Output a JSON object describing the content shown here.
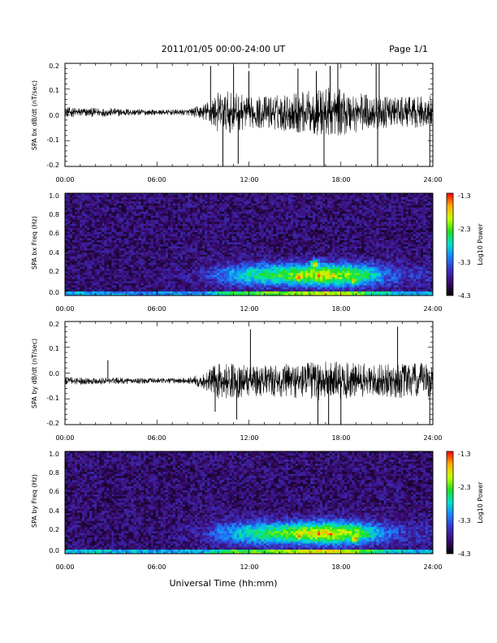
{
  "header": {
    "title": "2011/01/05  00:00-24:00 UT",
    "page": "Page 1/1"
  },
  "x_axis": {
    "title": "Universal Time (hh:mm)",
    "tick_labels": [
      "00:00",
      "06:00",
      "12:00",
      "18:00",
      "24:00"
    ],
    "range_hours": [
      0,
      24
    ]
  },
  "colorbar": {
    "label": "Log10 Power",
    "tick_labels": [
      "-1.3",
      "-2.3",
      "-3.3",
      "-4.3"
    ],
    "range": [
      -4.3,
      -1.3
    ],
    "colors": [
      "#000000",
      "#3a0a6e",
      "#3b2fc0",
      "#1a7fff",
      "#00e0d0",
      "#20e020",
      "#c8ff00",
      "#ffb000",
      "#ff0000"
    ]
  },
  "chart_data": [
    {
      "type": "line",
      "panel": "bx-timeseries",
      "ylabel": "SPA bx dB/dt (nT/sec)",
      "ylim": [
        -0.2,
        0.2
      ],
      "yticks": [
        "0.2",
        "0.1",
        "0.0",
        "-0.1",
        "-0.2"
      ],
      "x_unit": "hours UT",
      "baseline": 0.01,
      "envelope": {
        "x": [
          0,
          4,
          6,
          8,
          9,
          10,
          11,
          12,
          13,
          14,
          15,
          16,
          17,
          18,
          19,
          20,
          21,
          22,
          23,
          24
        ],
        "amplitude": [
          0.02,
          0.015,
          0.01,
          0.012,
          0.03,
          0.08,
          0.08,
          0.06,
          0.065,
          0.07,
          0.08,
          0.085,
          0.1,
          0.09,
          0.08,
          0.07,
          0.06,
          0.06,
          0.06,
          0.07
        ]
      },
      "spikes": [
        {
          "x": 9.5,
          "y": 0.19
        },
        {
          "x": 10.3,
          "y": -0.2
        },
        {
          "x": 11.0,
          "y": 0.19
        },
        {
          "x": 11.3,
          "y": -0.19
        },
        {
          "x": 12.0,
          "y": 0.17
        },
        {
          "x": 15.2,
          "y": 0.18
        },
        {
          "x": 16.4,
          "y": 0.17
        },
        {
          "x": 16.9,
          "y": -0.2
        },
        {
          "x": 17.3,
          "y": 0.19
        },
        {
          "x": 17.8,
          "y": 0.2
        },
        {
          "x": 20.3,
          "y": 0.2
        },
        {
          "x": 20.4,
          "y": -0.2
        },
        {
          "x": 20.5,
          "y": 0.2
        },
        {
          "x": 23.8,
          "y": -0.2
        }
      ]
    },
    {
      "type": "heatmap",
      "panel": "bx-spectrogram",
      "ylabel": "SPA bx Freq (Hz)",
      "ylim": [
        0.0,
        1.0
      ],
      "yticks": [
        "1.0",
        "0.8",
        "0.6",
        "0.4",
        "0.2",
        "0.0"
      ],
      "background_log_power": -3.9,
      "activity_log_power": {
        "x": [
          0,
          6,
          9,
          10,
          11,
          12,
          13,
          14,
          15,
          16,
          17,
          18,
          19,
          20,
          21,
          22,
          23,
          24
        ],
        "low_freq_band": [
          -3.0,
          -3.2,
          -3.2,
          -2.8,
          -2.5,
          -2.5,
          -2.4,
          -2.3,
          -2.2,
          -2.1,
          -2.0,
          -2.1,
          -2.3,
          -2.6,
          -2.9,
          -3.0,
          -3.1,
          -3.0
        ],
        "band_0p2_hz": [
          -3.9,
          -3.9,
          -3.7,
          -3.3,
          -3.0,
          -2.8,
          -2.6,
          -2.5,
          -2.3,
          -2.1,
          -2.0,
          -2.2,
          -2.4,
          -2.8,
          -3.3,
          -3.5,
          -3.6,
          -3.6
        ]
      },
      "hot_spots": [
        {
          "x": 15.2,
          "freq": 0.18,
          "log_power": -1.5
        },
        {
          "x": 16.3,
          "freq": 0.3,
          "log_power": -1.8
        },
        {
          "x": 16.6,
          "freq": 0.2,
          "log_power": -1.4
        },
        {
          "x": 17.5,
          "freq": 0.2,
          "log_power": -1.6
        },
        {
          "x": 18.8,
          "freq": 0.15,
          "log_power": -1.9
        }
      ]
    },
    {
      "type": "line",
      "panel": "by-timeseries",
      "ylabel": "SPA by dB/dt (nT/sec)",
      "ylim": [
        -0.2,
        0.2
      ],
      "yticks": [
        "0.2",
        "0.1",
        "0.0",
        "-0.1",
        "-0.2"
      ],
      "x_unit": "hours UT",
      "baseline": -0.03,
      "envelope": {
        "x": [
          0,
          4,
          6,
          8,
          9,
          10,
          11,
          12,
          13,
          14,
          15,
          16,
          17,
          18,
          19,
          20,
          21,
          22,
          23,
          24
        ],
        "amplitude": [
          0.015,
          0.012,
          0.01,
          0.012,
          0.03,
          0.07,
          0.07,
          0.06,
          0.06,
          0.065,
          0.07,
          0.075,
          0.08,
          0.075,
          0.07,
          0.065,
          0.065,
          0.07,
          0.07,
          0.07
        ]
      },
      "spikes": [
        {
          "x": 2.8,
          "y": 0.05
        },
        {
          "x": 9.8,
          "y": -0.15
        },
        {
          "x": 11.2,
          "y": -0.18
        },
        {
          "x": 12.1,
          "y": 0.17
        },
        {
          "x": 16.5,
          "y": -0.2
        },
        {
          "x": 17.2,
          "y": -0.2
        },
        {
          "x": 18.0,
          "y": -0.2
        },
        {
          "x": 21.7,
          "y": 0.18
        },
        {
          "x": 23.8,
          "y": -0.2
        }
      ]
    },
    {
      "type": "heatmap",
      "panel": "by-spectrogram",
      "ylabel": "SPA by Freq (Hz)",
      "ylim": [
        0.0,
        1.0
      ],
      "yticks": [
        "1.0",
        "0.8",
        "0.6",
        "0.4",
        "0.2",
        "0.0"
      ],
      "background_log_power": -3.9,
      "activity_log_power": {
        "x": [
          0,
          6,
          9,
          10,
          11,
          12,
          13,
          14,
          15,
          16,
          17,
          18,
          19,
          20,
          21,
          22,
          23,
          24
        ],
        "low_freq_band": [
          -2.9,
          -3.0,
          -3.0,
          -2.7,
          -2.4,
          -2.4,
          -2.3,
          -2.2,
          -2.1,
          -2.0,
          -1.9,
          -2.0,
          -2.2,
          -2.5,
          -2.8,
          -2.9,
          -3.0,
          -2.9
        ],
        "band_0p2_hz": [
          -3.9,
          -3.9,
          -3.7,
          -3.3,
          -3.0,
          -2.7,
          -2.5,
          -2.4,
          -2.2,
          -2.0,
          -1.9,
          -2.1,
          -2.3,
          -2.8,
          -3.3,
          -3.5,
          -3.6,
          -3.6
        ]
      },
      "hot_spots": [
        {
          "x": 15.3,
          "freq": 0.18,
          "log_power": -1.6
        },
        {
          "x": 16.6,
          "freq": 0.2,
          "log_power": -1.3
        },
        {
          "x": 17.3,
          "freq": 0.2,
          "log_power": -1.5
        },
        {
          "x": 18.9,
          "freq": 0.15,
          "log_power": -1.7
        }
      ]
    }
  ]
}
